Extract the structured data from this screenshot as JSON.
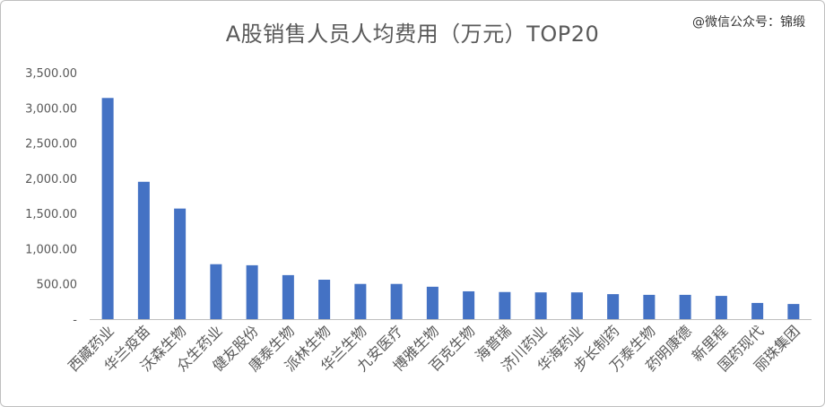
{
  "chart_data": {
    "type": "bar",
    "title": "A股销售人员人均费用（万元）TOP20",
    "watermark": "@微信公众号：锦缎",
    "categories": [
      "西藏药业",
      "华兰疫苗",
      "沃森生物",
      "众生药业",
      "健友股份",
      "康泰生物",
      "派林生物",
      "华兰生物",
      "九安医疗",
      "博雅生物",
      "百克生物",
      "海普瑞",
      "济川药业",
      "华海药业",
      "步长制药",
      "万泰生物",
      "药明康德",
      "新里程",
      "国药现代",
      "丽珠集团"
    ],
    "values": [
      3140,
      1950,
      1570,
      780,
      765,
      625,
      560,
      500,
      500,
      460,
      395,
      385,
      380,
      380,
      355,
      345,
      345,
      330,
      230,
      215
    ],
    "yticks": [
      "-",
      "500.00",
      "1,000.00",
      "1,500.00",
      "2,000.00",
      "2,500.00",
      "3,000.00",
      "3,500.00"
    ],
    "ylim": [
      0,
      3500
    ],
    "grid": false,
    "bar_color": "#4472c4"
  }
}
